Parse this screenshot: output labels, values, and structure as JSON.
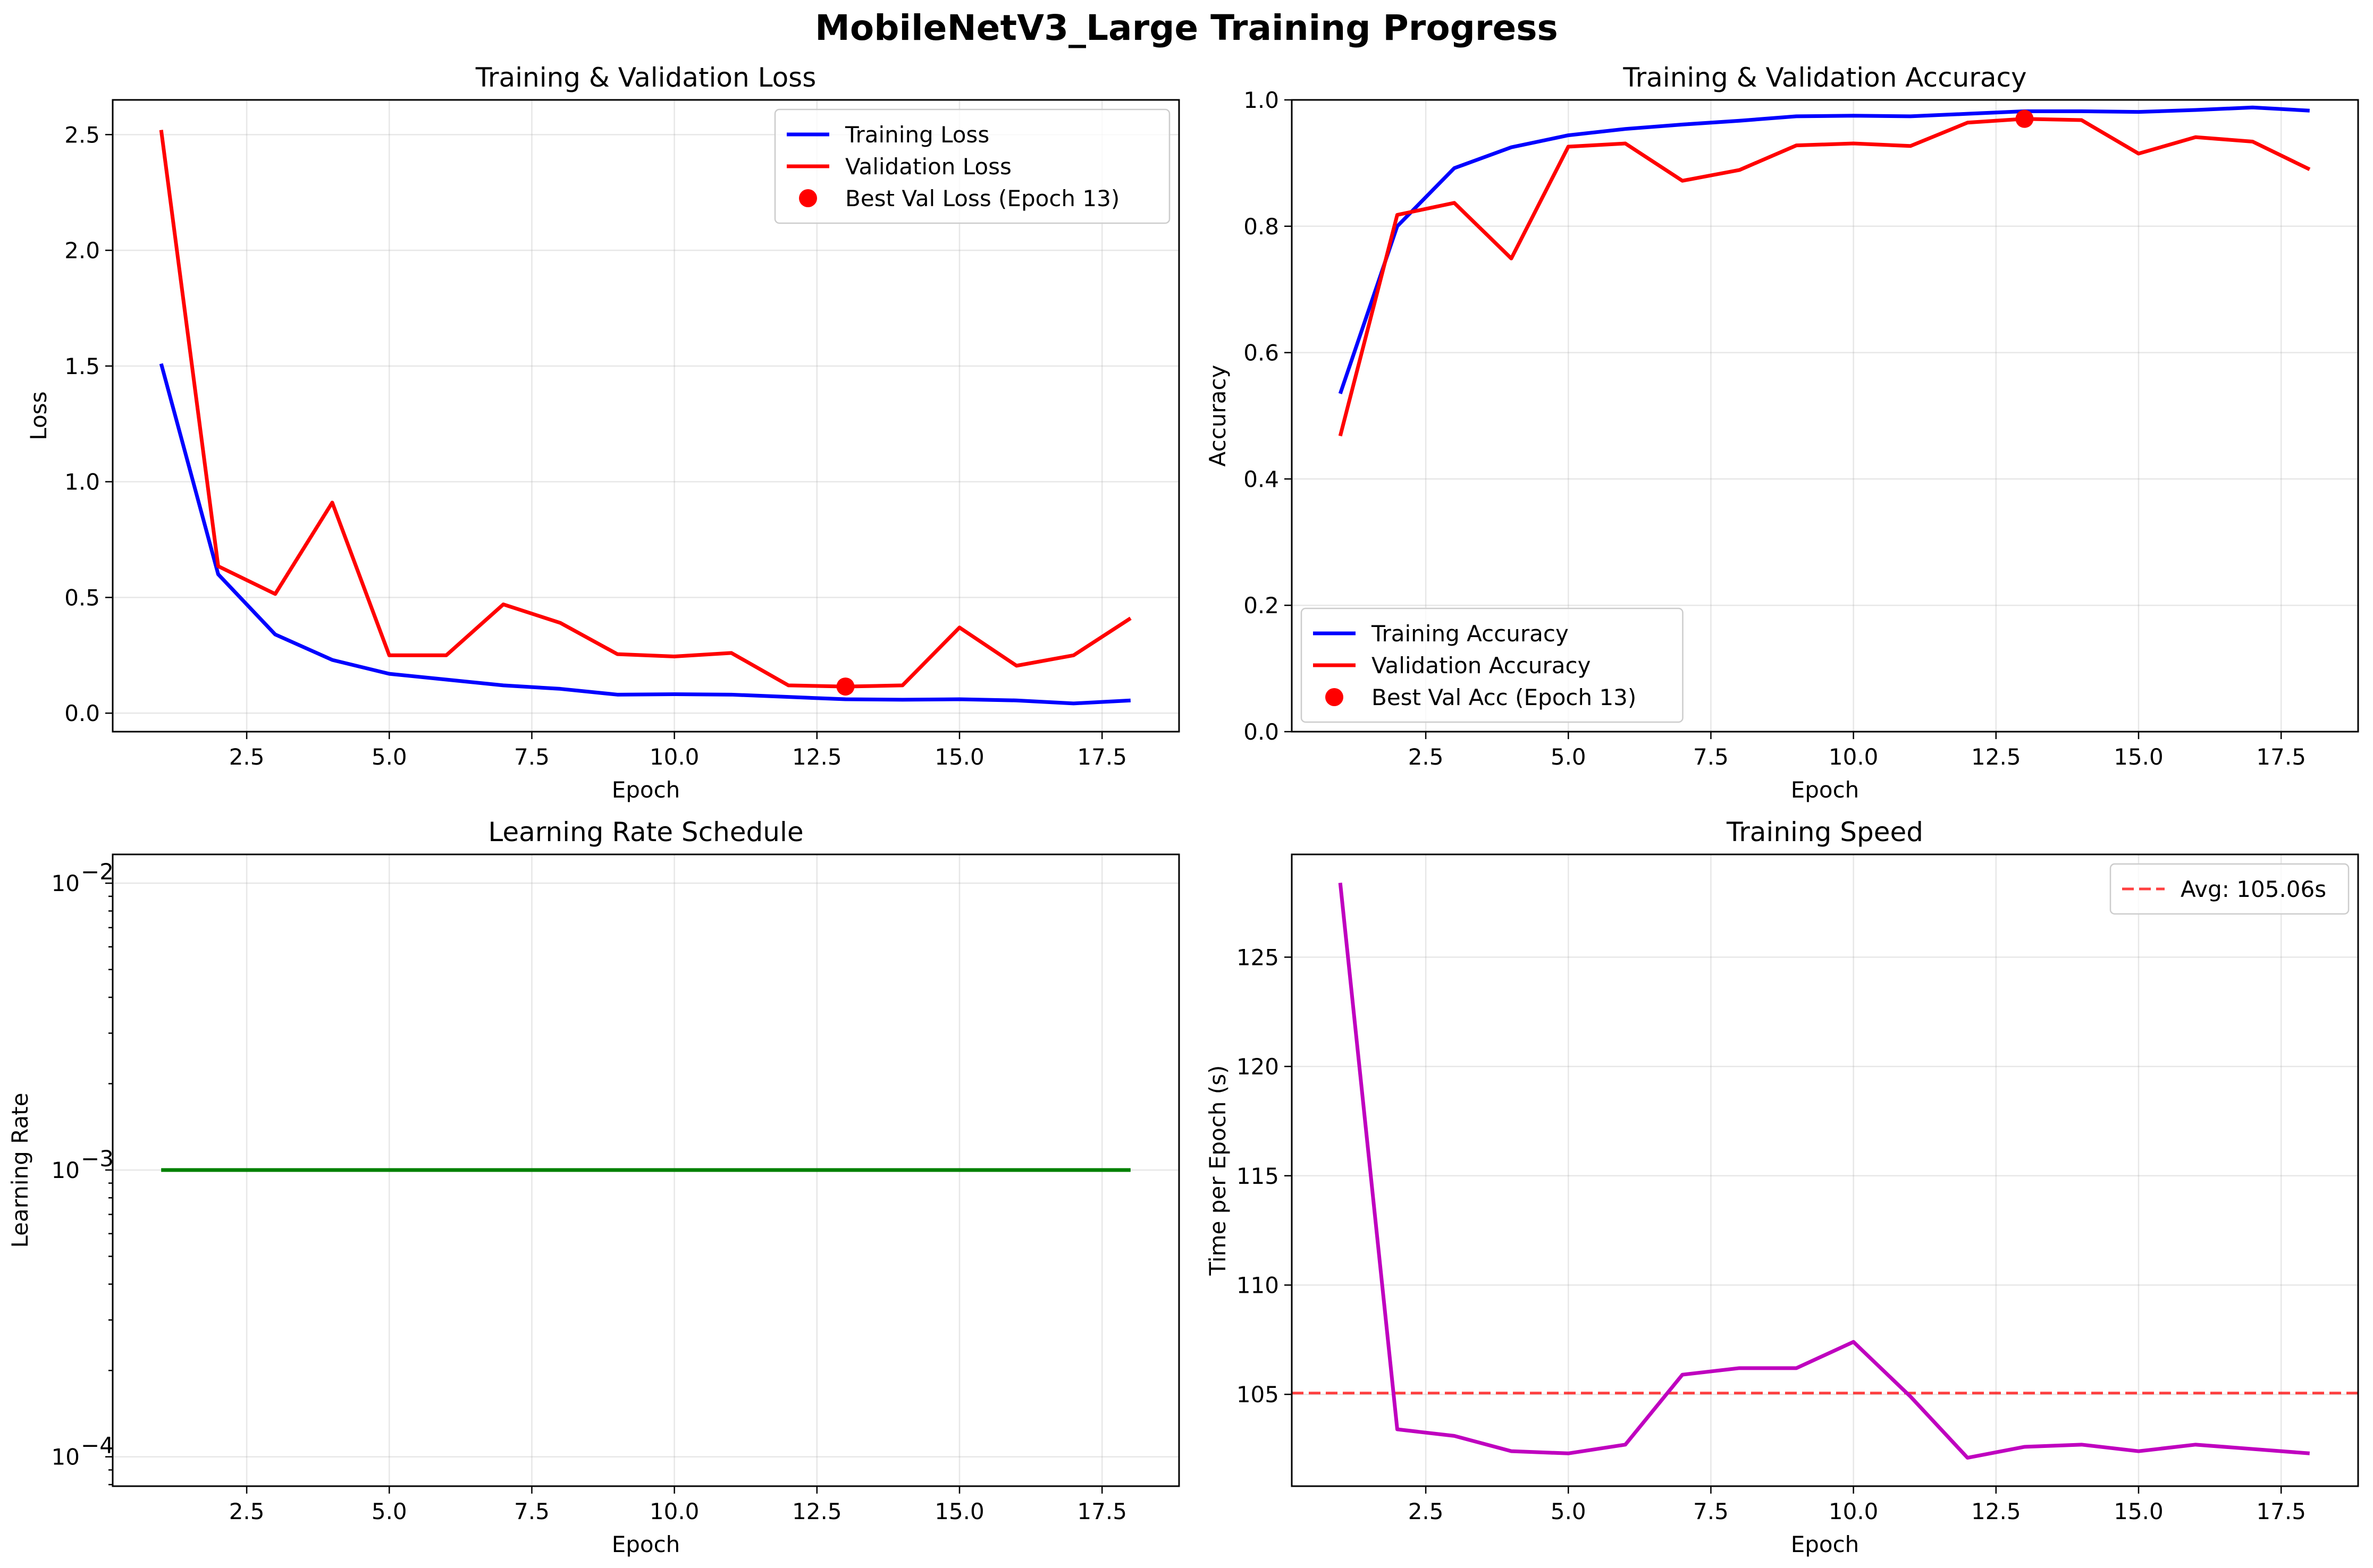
{
  "figure": {
    "title": "MobileNetV3_Large Training Progress"
  },
  "colors": {
    "training": "#0000ff",
    "validation": "#ff0000",
    "learning_rate": "#008000",
    "speed": "#bf00bf",
    "average": "#ff0000"
  },
  "chart_data": [
    {
      "id": "loss",
      "type": "line",
      "title": "Training & Validation Loss",
      "xlabel": "Epoch",
      "ylabel": "Loss",
      "xlim": [
        0.15,
        18.85
      ],
      "ylim": [
        -0.08,
        2.65
      ],
      "xticks": [
        2.5,
        5.0,
        7.5,
        10.0,
        12.5,
        15.0,
        17.5
      ],
      "xtick_labels": [
        "2.5",
        "5.0",
        "7.5",
        "10.0",
        "12.5",
        "15.0",
        "17.5"
      ],
      "yticks": [
        0.0,
        0.5,
        1.0,
        1.5,
        2.0,
        2.5
      ],
      "ytick_labels": [
        "0.0",
        "0.5",
        "1.0",
        "1.5",
        "2.0",
        "2.5"
      ],
      "grid": true,
      "legend_position": "top-right",
      "x": [
        1,
        2,
        3,
        4,
        5,
        6,
        7,
        8,
        9,
        10,
        11,
        12,
        13,
        14,
        15,
        16,
        17,
        18
      ],
      "series": [
        {
          "name": "Training Loss",
          "color": "#0000ff",
          "values": [
            1.51,
            0.6,
            0.34,
            0.23,
            0.17,
            0.145,
            0.12,
            0.105,
            0.08,
            0.082,
            0.08,
            0.07,
            0.06,
            0.058,
            0.06,
            0.055,
            0.042,
            0.055
          ]
        },
        {
          "name": "Validation Loss",
          "color": "#ff0000",
          "values": [
            2.52,
            0.635,
            0.515,
            0.91,
            0.25,
            0.25,
            0.47,
            0.39,
            0.255,
            0.245,
            0.26,
            0.12,
            0.115,
            0.12,
            0.37,
            0.205,
            0.25,
            0.41
          ]
        }
      ],
      "markers": [
        {
          "name": "Best Val Loss (Epoch 13)",
          "x": 13,
          "y": 0.115,
          "color": "#ff0000"
        }
      ]
    },
    {
      "id": "accuracy",
      "type": "line",
      "title": "Training & Validation Accuracy",
      "xlabel": "Epoch",
      "ylabel": "Accuracy",
      "xlim": [
        0.15,
        18.85
      ],
      "ylim": [
        0.0,
        1.0
      ],
      "xticks": [
        2.5,
        5.0,
        7.5,
        10.0,
        12.5,
        15.0,
        17.5
      ],
      "xtick_labels": [
        "2.5",
        "5.0",
        "7.5",
        "10.0",
        "12.5",
        "15.0",
        "17.5"
      ],
      "yticks": [
        0.0,
        0.2,
        0.4,
        0.6,
        0.8,
        1.0
      ],
      "ytick_labels": [
        "0.0",
        "0.2",
        "0.4",
        "0.6",
        "0.8",
        "1.0"
      ],
      "grid": true,
      "legend_position": "bottom-left",
      "x": [
        1,
        2,
        3,
        4,
        5,
        6,
        7,
        8,
        9,
        10,
        11,
        12,
        13,
        14,
        15,
        16,
        17,
        18
      ],
      "series": [
        {
          "name": "Training Accuracy",
          "color": "#0000ff",
          "values": [
            0.535,
            0.8,
            0.892,
            0.925,
            0.944,
            0.954,
            0.961,
            0.967,
            0.974,
            0.975,
            0.974,
            0.978,
            0.982,
            0.982,
            0.981,
            0.984,
            0.988,
            0.983
          ]
        },
        {
          "name": "Validation Accuracy",
          "color": "#ff0000",
          "values": [
            0.468,
            0.818,
            0.837,
            0.749,
            0.926,
            0.931,
            0.872,
            0.889,
            0.928,
            0.931,
            0.927,
            0.964,
            0.97,
            0.968,
            0.915,
            0.941,
            0.934,
            0.89
          ]
        }
      ],
      "markers": [
        {
          "name": "Best Val Acc (Epoch 13)",
          "x": 13,
          "y": 0.97,
          "color": "#ff0000"
        }
      ]
    },
    {
      "id": "lr",
      "type": "line",
      "title": "Learning Rate Schedule",
      "xlabel": "Epoch",
      "ylabel": "Learning Rate",
      "log_y": true,
      "xlim": [
        0.15,
        18.85
      ],
      "ylim": [
        7.9e-05,
        0.0126
      ],
      "xticks": [
        2.5,
        5.0,
        7.5,
        10.0,
        12.5,
        15.0,
        17.5
      ],
      "xtick_labels": [
        "2.5",
        "5.0",
        "7.5",
        "10.0",
        "12.5",
        "15.0",
        "17.5"
      ],
      "yticks": [
        0.0001,
        0.001,
        0.01
      ],
      "ytick_labels": [
        {
          "base": "10",
          "exp": "−4"
        },
        {
          "base": "10",
          "exp": "−3"
        },
        {
          "base": "10",
          "exp": "−2"
        }
      ],
      "grid": true,
      "x": [
        1,
        2,
        3,
        4,
        5,
        6,
        7,
        8,
        9,
        10,
        11,
        12,
        13,
        14,
        15,
        16,
        17,
        18
      ],
      "series": [
        {
          "color": "#008000",
          "values": [
            0.001,
            0.001,
            0.001,
            0.001,
            0.001,
            0.001,
            0.001,
            0.001,
            0.001,
            0.001,
            0.001,
            0.001,
            0.001,
            0.001,
            0.001,
            0.001,
            0.001,
            0.001
          ]
        }
      ]
    },
    {
      "id": "speed",
      "type": "line",
      "title": "Training Speed",
      "xlabel": "Epoch",
      "ylabel": "Time per Epoch (s)",
      "xlim": [
        0.15,
        18.85
      ],
      "ylim": [
        100.8,
        129.7
      ],
      "xticks": [
        2.5,
        5.0,
        7.5,
        10.0,
        12.5,
        15.0,
        17.5
      ],
      "xtick_labels": [
        "2.5",
        "5.0",
        "7.5",
        "10.0",
        "12.5",
        "15.0",
        "17.5"
      ],
      "yticks": [
        105,
        110,
        115,
        120,
        125
      ],
      "ytick_labels": [
        "105",
        "110",
        "115",
        "120",
        "125"
      ],
      "grid": true,
      "legend_position": "top-right",
      "x": [
        1,
        2,
        3,
        4,
        5,
        6,
        7,
        8,
        9,
        10,
        11,
        12,
        13,
        14,
        15,
        16,
        17,
        18
      ],
      "series": [
        {
          "color": "#bf00bf",
          "values": [
            128.4,
            103.4,
            103.1,
            102.4,
            102.3,
            102.7,
            105.9,
            106.2,
            106.2,
            107.4,
            104.9,
            102.1,
            102.6,
            102.7,
            102.4,
            102.7,
            102.5,
            102.3
          ]
        }
      ],
      "hlines": [
        {
          "name": "Avg: 105.06s",
          "y": 105.06,
          "color": "#ff0000",
          "style": "dashed"
        }
      ]
    }
  ]
}
